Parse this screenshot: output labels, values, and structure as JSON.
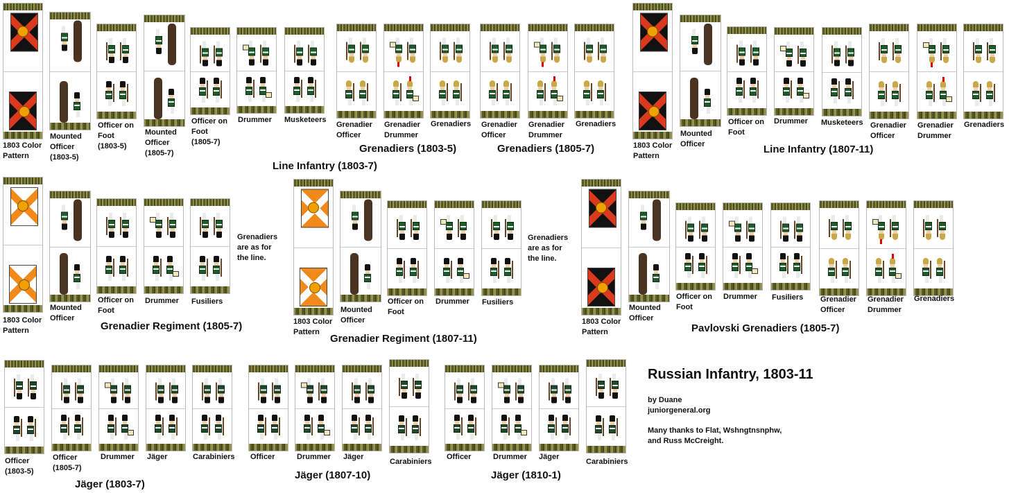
{
  "colors": {
    "coat_green": "#1f5c2c",
    "flag_black": "#111111",
    "flag_red": "#d93a1e",
    "flag_orange": "#f28a1b",
    "flag_white": "#ffffff",
    "grass": "#5b5a27"
  },
  "labels": {
    "r1_color": "1803 Color\nPattern",
    "r1_mounted_a": "Mounted\nOfficer\n(1803-5)",
    "r1_officer_foot_a": "Officer on\nFoot\n(1803-5)",
    "r1_mounted_b": "Mounted\nOfficer\n(1805-7)",
    "r1_officer_foot_b": "Officer on\nFoot\n(1805-7)",
    "r1_drummer": "Drummer",
    "r1_musketeers": "Musketeers",
    "r1_gren_officer_a": "Grenadier\nOfficer",
    "r1_gren_drummer_a": "Grenadier\nDrummer",
    "r1_grenadiers_a": "Grenadiers",
    "r1_gren_officer_b": "Grenadier\nOfficer",
    "r1_gren_drummer_b": "Grenadier\nDrummer",
    "r1_grenadiers_b": "Grenadiers",
    "r1r_color": "1803 Color\nPattern",
    "r1r_mounted": "Mounted\nOfficer",
    "r1r_officer_foot": "Officer on\nFoot",
    "r1r_drummer": "Drummer",
    "r1r_musketeers": "Musketeers",
    "r1r_gren_officer": "Grenadier\nOfficer",
    "r1r_gren_drummer": "Grenadier\nDrummer",
    "r1r_grenadiers": "Grenadiers",
    "r2a_color": "1803 Color\nPattern",
    "r2a_mounted": "Mounted\nOfficer",
    "r2a_officer_foot": "Officer on\nFoot",
    "r2a_drummer": "Drummer",
    "r2a_fusiliers": "Fusiliers",
    "r2b_color": "1803 Color\nPattern",
    "r2b_mounted": "Mounted\nOfficer",
    "r2b_officer_foot": "Officer on\nFoot",
    "r2b_drummer": "Drummer",
    "r2b_fusiliers": "Fusiliers",
    "r2c_color": "1803 Color\nPattern",
    "r2c_mounted": "Mounted\nOfficer",
    "r2c_officer_foot": "Officer on\nFoot",
    "r2c_drummer": "Drummer",
    "r2c_fusiliers": "Fusiliers",
    "r2c_gren_officer": "Grenadier\nOfficer",
    "r2c_gren_drummer": "Grenadier\nDrummer",
    "r2c_grenadiers": "Grenadiers",
    "r3a_officer_a": "Officer\n(1803-5)",
    "r3a_officer_b": "Officer\n(1805-7)",
    "r3a_drummer": "Drummer",
    "r3a_jager": "Jäger",
    "r3a_carabiniers": "Carabiniers",
    "r3b_officer": "Officer",
    "r3b_drummer": "Drummer",
    "r3b_jager": "Jäger",
    "r3b_carabiniers": "Carabiniers",
    "r3c_officer": "Officer",
    "r3c_drummer": "Drummer",
    "r3c_jager": "Jäger",
    "r3c_carabiniers": "Carabiniers"
  },
  "titles": {
    "grenadiers_1803_5": "Grenadiers (1803-5)",
    "grenadiers_1805_7": "Grenadiers (1805-7)",
    "line_1803_7": "Line Infantry (1803-7)",
    "line_1807_11": "Line Infantry (1807-11)",
    "gren_reg_1805_7": "Grenadier Regiment (1805-7)",
    "gren_reg_1807_11": "Grenadier Regiment (1807-11)",
    "pavlovski": "Pavlovski Grenadiers (1805-7)",
    "jager_1803_7": "Jäger (1803-7)",
    "jager_1807_10": "Jäger (1807-10)",
    "jager_1810_1": "Jäger (1810-1)"
  },
  "notes": {
    "gren_as_line_a": "Grenadiers\nare as for\nthe line.",
    "gren_as_line_b": "Grenadiers\nare as for\nthe line."
  },
  "credits": {
    "main_title": "Russian Infantry, 1803-11",
    "byline": "by Duane\njuniorgeneral.org",
    "thanks": "Many thanks to Flat, Wshngtnsnphw,\nand Russ McCreight."
  }
}
